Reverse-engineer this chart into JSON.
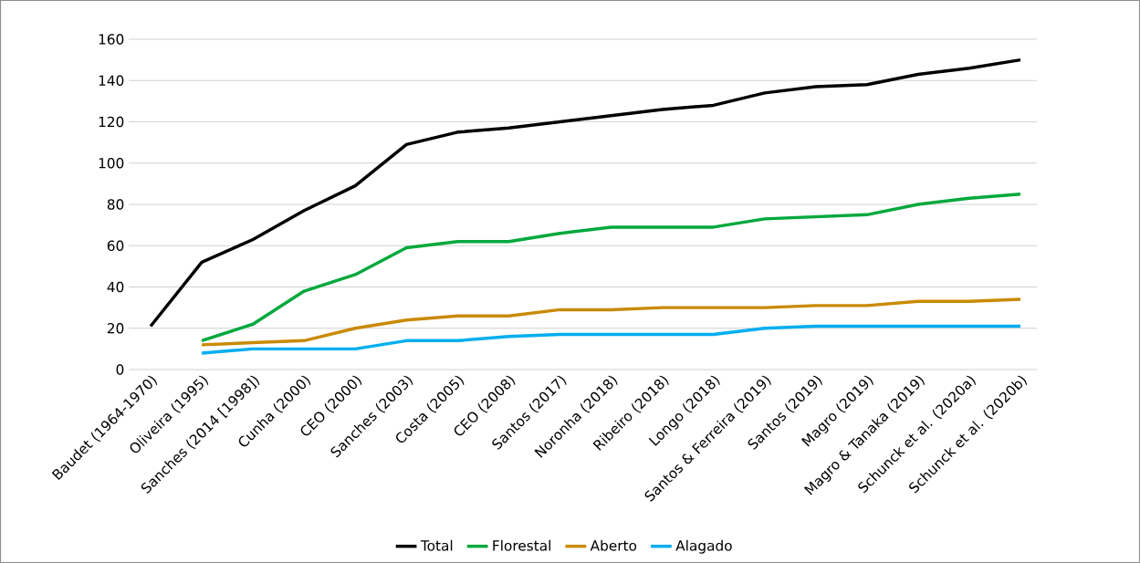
{
  "chart_data": {
    "type": "line",
    "categories": [
      "Baudet (1964-1970)",
      "Oliveira (1995)",
      "Sanches (2014 [1998])",
      "Cunha (2000)",
      "CEO (2000)",
      "Sanches (2003)",
      "Costa (2005)",
      "CEO (2008)",
      "Santos (2017)",
      "Noronha (2018)",
      "Ribeiro (2018)",
      "Longo (2018)",
      "Santos & Ferreira (2019)",
      "Santos (2019)",
      "Magro (2019)",
      "Magro & Tanaka (2019)",
      "Schunck et al. (2020a)",
      "Schunck et al. (2020b)"
    ],
    "series": [
      {
        "name": "Total",
        "color": "#000000",
        "values": [
          21,
          52,
          63,
          77,
          89,
          109,
          115,
          117,
          120,
          123,
          126,
          128,
          134,
          137,
          138,
          143,
          146,
          150
        ]
      },
      {
        "name": "Florestal",
        "color": "#00a83c",
        "values": [
          null,
          14,
          22,
          38,
          46,
          59,
          62,
          62,
          66,
          69,
          69,
          69,
          73,
          74,
          75,
          80,
          83,
          85
        ]
      },
      {
        "name": "Aberto",
        "color": "#c98a00",
        "values": [
          null,
          12,
          13,
          14,
          20,
          24,
          26,
          26,
          29,
          29,
          30,
          30,
          30,
          31,
          31,
          33,
          33,
          34
        ]
      },
      {
        "name": "Alagado",
        "color": "#00aeef",
        "values": [
          null,
          8,
          10,
          10,
          10,
          14,
          14,
          16,
          17,
          17,
          17,
          17,
          20,
          21,
          21,
          21,
          21,
          21
        ]
      }
    ],
    "ylim": [
      0,
      160
    ],
    "yticks": [
      0,
      20,
      40,
      60,
      80,
      100,
      120,
      140,
      160
    ],
    "grid": "y",
    "legend": "bottom",
    "marker": "none",
    "line_style": "solid"
  }
}
